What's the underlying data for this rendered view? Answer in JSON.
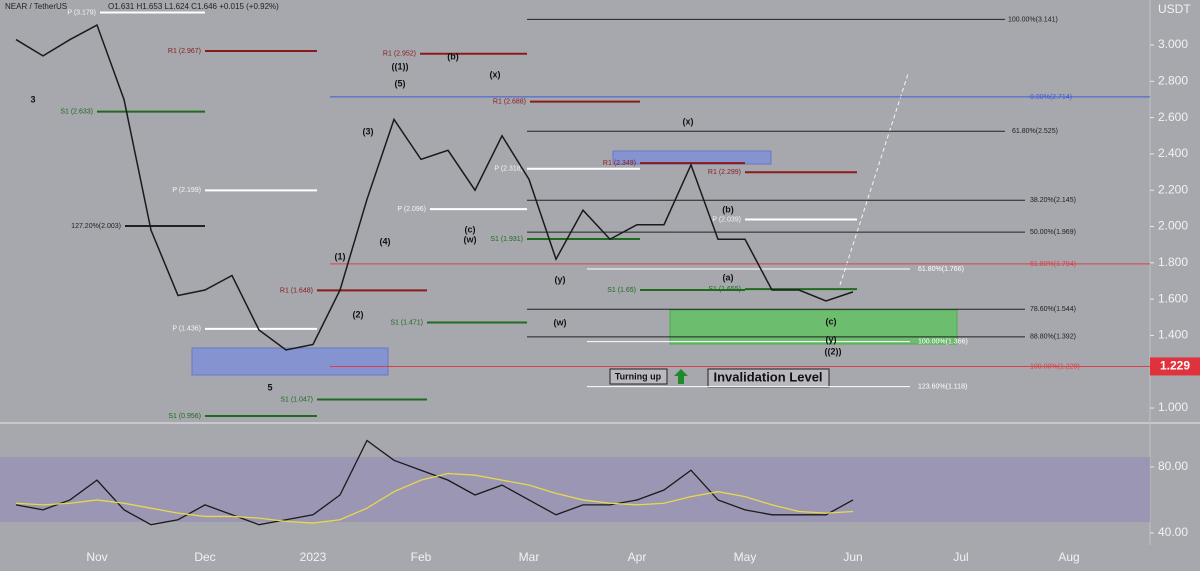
{
  "header": {
    "symbol": "NEAR / TetherUS",
    "ohlc": "O1.631 H1.653 L1.624 C1.646 +0.015 (+0.92%)",
    "currency": "USDT"
  },
  "notes": {
    "turning": "Turning up",
    "invalidation": "Invalidation Level"
  },
  "chart_data": [
    {
      "type": "line",
      "color": "#1a1a1a",
      "categories": [
        null,
        null,
        null,
        "Nov",
        null,
        null,
        null,
        "Dec",
        null,
        null,
        null,
        "2023",
        null,
        null,
        null,
        "Feb",
        null,
        null,
        null,
        "Mar",
        null,
        null,
        null,
        "Apr",
        null,
        null,
        null,
        "May",
        null,
        null,
        null,
        "Jun",
        null,
        null,
        null,
        "Jul",
        null,
        null,
        null,
        "Aug",
        null,
        null,
        null
      ],
      "values": [
        3.03,
        2.94,
        3.03,
        3.11,
        2.7,
        1.98,
        1.62,
        1.65,
        1.73,
        1.43,
        1.32,
        1.35,
        1.65,
        2.15,
        2.59,
        2.37,
        2.42,
        2.2,
        2.5,
        2.26,
        1.82,
        2.09,
        1.93,
        2.01,
        2.01,
        2.34,
        1.93,
        1.93,
        1.65,
        1.65,
        1.59,
        1.64,
        null,
        null,
        null,
        null,
        null,
        null,
        null,
        null,
        null,
        null,
        null
      ],
      "ylim": [
        0.923,
        3.248
      ],
      "yticks": [
        {
          "value": 1.0,
          "label": "1.000"
        },
        {
          "value": 1.2,
          "label": "1.200"
        },
        {
          "value": 1.4,
          "label": "1.400"
        },
        {
          "value": 1.6,
          "label": "1.600"
        },
        {
          "value": 1.8,
          "label": "1.800"
        },
        {
          "value": 2.0,
          "label": "2.000"
        },
        {
          "value": 2.2,
          "label": "2.200"
        },
        {
          "value": 2.4,
          "label": "2.400"
        },
        {
          "value": 2.6,
          "label": "2.600"
        },
        {
          "value": 2.8,
          "label": "2.800"
        },
        {
          "value": 3.0,
          "label": "3.000"
        }
      ],
      "current_level": 1.229,
      "levels": [
        {
          "label": "100.00%(3.141)",
          "value": 3.141,
          "color": "#222222"
        },
        {
          "label": "61.80%(2.525)",
          "value": 2.525,
          "color": "#222222"
        },
        {
          "label": "38.20%(2.145)",
          "value": 2.145,
          "color": "#222222"
        },
        {
          "label": "50.00%(1.969)",
          "value": 1.969,
          "color": "#222222"
        },
        {
          "label": "61.80%(1.766)",
          "value": 1.766,
          "color": "#ffffff"
        },
        {
          "label": "78.60%(1.544)",
          "value": 1.544,
          "color": "#222222"
        },
        {
          "label": "88.80%(1.392)",
          "value": 1.392,
          "color": "#222222"
        },
        {
          "label": "100.00%(1.366)",
          "value": 1.366,
          "color": "#ffffff"
        },
        {
          "label": "123.60%(1.118)",
          "value": 1.118,
          "color": "#ffffff"
        },
        {
          "label": "0.00%(2.714)",
          "value": 2.714,
          "color": "#3f5bd6"
        },
        {
          "label": "61.80%(1.794)",
          "value": 1.794,
          "color": "#d9414a"
        },
        {
          "label": "100.00%(1.229)",
          "value": 1.229,
          "color": "#d9414a"
        }
      ],
      "pivots": [
        {
          "label": "P (3.179)",
          "value": 3.179,
          "color": "#ffffff"
        },
        {
          "label": "R1 (2.967)",
          "value": 2.967,
          "color": "#8b1a1a"
        },
        {
          "label": "S1 (2.633)",
          "value": 2.633,
          "color": "#1e6b1e"
        },
        {
          "label": "P (2.199)",
          "value": 2.199,
          "color": "#ffffff"
        },
        {
          "label": "127.20%(2.003)",
          "value": 2.003,
          "color": "#222222"
        },
        {
          "label": "R1 (2.952)",
          "value": 2.952,
          "color": "#8b1a1a"
        },
        {
          "label": "R1 (2.688)",
          "value": 2.688,
          "color": "#8b1a1a"
        },
        {
          "label": "P (2.318)",
          "value": 2.318,
          "color": "#ffffff"
        },
        {
          "label": "P (2.096)",
          "value": 2.096,
          "color": "#ffffff"
        },
        {
          "label": "S1 (1.931)",
          "value": 1.931,
          "color": "#1e6b1e"
        },
        {
          "label": "R1 (2.349)",
          "value": 2.349,
          "color": "#8b1a1a"
        },
        {
          "label": "R1 (2.299)",
          "value": 2.299,
          "color": "#8b1a1a"
        },
        {
          "label": "P (2.039)",
          "value": 2.039,
          "color": "#ffffff"
        },
        {
          "label": "S1 (1.65)",
          "value": 1.65,
          "color": "#1e6b1e"
        },
        {
          "label": "S1 (1.655)",
          "value": 1.655,
          "color": "#1e6b1e"
        },
        {
          "label": "R1 (1.648)",
          "value": 1.648,
          "color": "#8b1a1a"
        },
        {
          "label": "P (1.436)",
          "value": 1.436,
          "color": "#ffffff"
        },
        {
          "label": "S1 (1.471)",
          "value": 1.471,
          "color": "#1e6b1e"
        },
        {
          "label": "S1 (1.047)",
          "value": 1.047,
          "color": "#1e6b1e"
        },
        {
          "label": "S1 (0.956)",
          "value": 0.956,
          "color": "#1e6b1e"
        }
      ],
      "wave_labels": [
        "3",
        "5",
        "((1))",
        "(5)",
        "(3)",
        "(4)",
        "(1)",
        "(2)",
        "(b)",
        "(x)",
        "(c)",
        "(w)",
        "(y)",
        "(w)",
        "(x)",
        "(b)",
        "(a)",
        "(c)",
        "(y)",
        "((2))"
      ]
    },
    {
      "type": "line",
      "series": [
        {
          "color": "#1a1a1a",
          "values": [
            57,
            54,
            60,
            72,
            54,
            45,
            48,
            57,
            51,
            45,
            48,
            51,
            63,
            96,
            84,
            78,
            72,
            63,
            69,
            60,
            51,
            57,
            57,
            60,
            66,
            78,
            60,
            54,
            51,
            51,
            51,
            60,
            null,
            null,
            null,
            null,
            null,
            null,
            null,
            null,
            null,
            null,
            null
          ]
        },
        {
          "color": "#e8d84a",
          "values": [
            58,
            57,
            58,
            60,
            58,
            55,
            52,
            50,
            50,
            49,
            47,
            46,
            48,
            55,
            65,
            72,
            76,
            75,
            72,
            69,
            64,
            60,
            58,
            57,
            58,
            62,
            65,
            62,
            57,
            53,
            52,
            53,
            null,
            null,
            null,
            null,
            null,
            null,
            null,
            null,
            null,
            null,
            null
          ]
        }
      ],
      "ylim": [
        32.7,
        106
      ],
      "yticks": [
        {
          "value": 80,
          "label": "80.00"
        },
        {
          "value": 40,
          "label": "40.00"
        }
      ]
    }
  ]
}
